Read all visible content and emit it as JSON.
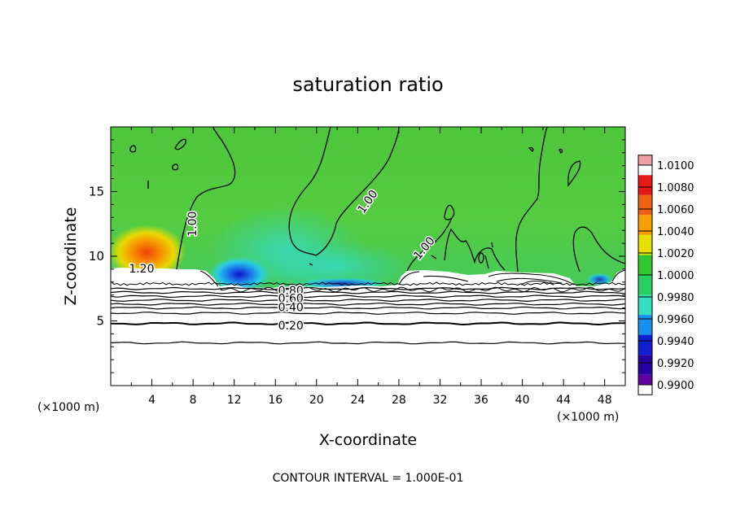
{
  "chart_data": {
    "type": "heatmap",
    "title": "saturation ratio",
    "xlabel": "X-coordinate",
    "ylabel": "Z-coordinate",
    "x_unit_left": "(×1000 m)",
    "x_unit_right": "(×1000 m)",
    "xlim": [
      0,
      50
    ],
    "ylim": [
      0,
      20
    ],
    "xticks": [
      "4",
      "8",
      "12",
      "16",
      "20",
      "24",
      "28",
      "32",
      "36",
      "40",
      "44",
      "48"
    ],
    "yticks": [
      "5",
      "10",
      "15"
    ],
    "colorbar": {
      "levels": [
        "1.0100",
        "1.0080",
        "1.0060",
        "1.0040",
        "1.0020",
        "1.0000",
        "0.9980",
        "0.9960",
        "0.9940",
        "0.9920",
        "0.9900"
      ],
      "colors": [
        "#f0a0a0",
        "#e81818",
        "#f06010",
        "#f8a000",
        "#e8e000",
        "#30c830",
        "#28d060",
        "#30e0c0",
        "#1890f0",
        "#1020d0",
        "#2800a0",
        "#6000a0"
      ]
    },
    "contour_labels": [
      {
        "text": "1.00",
        "x": 8.0,
        "z": 12.5,
        "rotate": -90
      },
      {
        "text": "1.00",
        "x": 25.0,
        "z": 14.2,
        "rotate": -55
      },
      {
        "text": "1.00",
        "x": 30.5,
        "z": 10.6,
        "rotate": -50
      },
      {
        "text": "1.20",
        "x": 3.0,
        "z": 9.0,
        "rotate": 0
      },
      {
        "text": "0.80",
        "x": 17.5,
        "z": 7.3,
        "rotate": 0
      },
      {
        "text": "0.60",
        "x": 17.5,
        "z": 6.7,
        "rotate": 0
      },
      {
        "text": "0.40",
        "x": 17.5,
        "z": 6.0,
        "rotate": 0
      },
      {
        "text": "0.20",
        "x": 17.5,
        "z": 4.6,
        "rotate": 0
      }
    ],
    "lower_contours_z": [
      3.3,
      4.8,
      5.6,
      6.0,
      6.3,
      6.6,
      6.9,
      7.2,
      7.5
    ],
    "grid": false
  },
  "footer": "CONTOUR INTERVAL = 1.000E-01"
}
